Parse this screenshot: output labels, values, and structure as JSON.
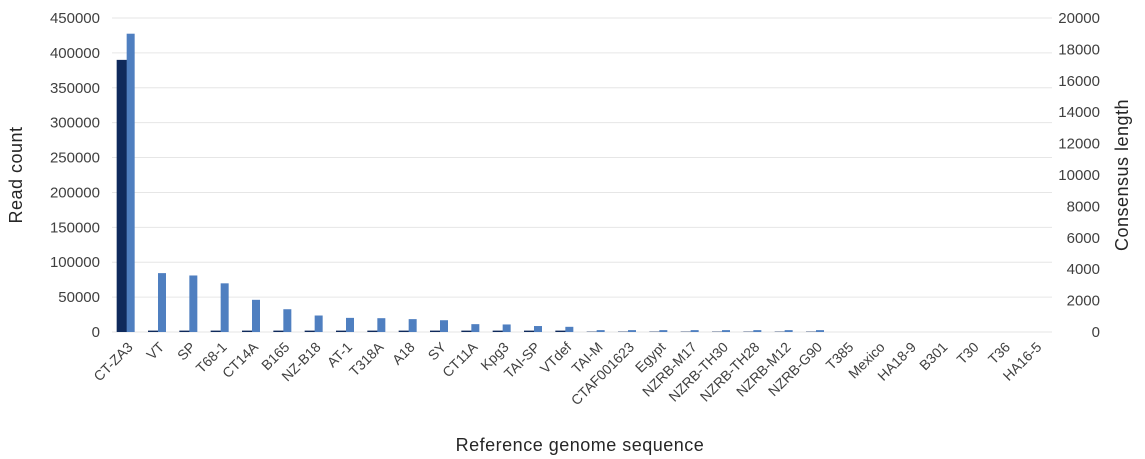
{
  "chart_data": {
    "type": "bar",
    "xlabel": "Reference genome sequence",
    "ylabel": "Read count",
    "y2label": "Consensus length",
    "ylim": [
      0,
      450000
    ],
    "y2lim": [
      0,
      20000
    ],
    "grid": true,
    "categories": [
      "CT-ZA3",
      "VT",
      "SP",
      "T68-1",
      "CT14A",
      "B165",
      "NZ-B18",
      "AT-1",
      "T318A",
      "A18",
      "SY",
      "CT11A",
      "Kpg3",
      "TAI-SP",
      "VTdef",
      "TAI-M",
      "CTAF001623",
      "Egypt",
      "NZRB-M17",
      "NZRB-TH30",
      "NZRB-TH28",
      "NZRB-M12",
      "NZRB-G90",
      "T385",
      "Mexico",
      "HA18-9",
      "B301",
      "T30",
      "T36",
      "HA16-5"
    ],
    "series": [
      {
        "axis": "left",
        "color": "#0f2a5c",
        "values": [
          390000,
          2000,
          2000,
          2000,
          2000,
          2000,
          2000,
          2000,
          2000,
          2000,
          2000,
          2000,
          2000,
          2000,
          2000,
          500,
          500,
          500,
          500,
          500,
          500,
          500,
          500,
          0,
          0,
          0,
          0,
          0,
          0,
          0
        ]
      },
      {
        "axis": "right",
        "color": "#4f7fc0",
        "values": [
          19000,
          3750,
          3600,
          3100,
          2050,
          1450,
          1050,
          900,
          880,
          820,
          750,
          500,
          480,
          380,
          330,
          120,
          120,
          120,
          120,
          120,
          120,
          120,
          120,
          0,
          0,
          0,
          0,
          0,
          0,
          0
        ]
      }
    ],
    "yticks": [
      "0",
      "50000",
      "100000",
      "150000",
      "200000",
      "250000",
      "300000",
      "350000",
      "400000",
      "450000"
    ],
    "y2ticks": [
      "0",
      "2000",
      "4000",
      "6000",
      "8000",
      "10000",
      "12000",
      "14000",
      "16000",
      "18000",
      "20000"
    ]
  }
}
